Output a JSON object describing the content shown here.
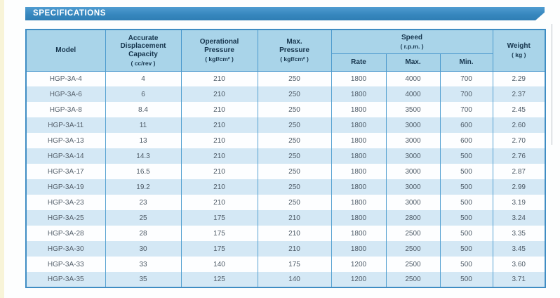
{
  "banner": {
    "title": "SPECIFICATIONS"
  },
  "table": {
    "header": {
      "model": "Model",
      "displacement": "Accurate\nDisplacement\nCapacity",
      "displacement_unit": "( cc/rev )",
      "operational_pressure": "Operational\nPressure",
      "operational_pressure_unit": "( kgf/cm² )",
      "max_pressure": "Max.\nPressure",
      "max_pressure_unit": "( kgf/cm² )",
      "speed": "Speed",
      "speed_unit": "( r.p.m. )",
      "rate": "Rate",
      "max": "Max.",
      "min": "Min.",
      "weight": "Weight",
      "weight_unit": "( kg )"
    },
    "rows": [
      [
        "HGP-3A-4",
        "4",
        "210",
        "250",
        "1800",
        "4000",
        "700",
        "2.29"
      ],
      [
        "HGP-3A-6",
        "6",
        "210",
        "250",
        "1800",
        "4000",
        "700",
        "2.37"
      ],
      [
        "HGP-3A-8",
        "8.4",
        "210",
        "250",
        "1800",
        "3500",
        "700",
        "2.45"
      ],
      [
        "HGP-3A-11",
        "11",
        "210",
        "250",
        "1800",
        "3000",
        "600",
        "2.60"
      ],
      [
        "HGP-3A-13",
        "13",
        "210",
        "250",
        "1800",
        "3000",
        "600",
        "2.70"
      ],
      [
        "HGP-3A-14",
        "14.3",
        "210",
        "250",
        "1800",
        "3000",
        "500",
        "2.76"
      ],
      [
        "HGP-3A-17",
        "16.5",
        "210",
        "250",
        "1800",
        "3000",
        "500",
        "2.87"
      ],
      [
        "HGP-3A-19",
        "19.2",
        "210",
        "250",
        "1800",
        "3000",
        "500",
        "2.99"
      ],
      [
        "HGP-3A-23",
        "23",
        "210",
        "250",
        "1800",
        "3000",
        "500",
        "3.19"
      ],
      [
        "HGP-3A-25",
        "25",
        "175",
        "210",
        "1800",
        "2800",
        "500",
        "3.24"
      ],
      [
        "HGP-3A-28",
        "28",
        "175",
        "210",
        "1800",
        "2500",
        "500",
        "3.35"
      ],
      [
        "HGP-3A-30",
        "30",
        "175",
        "210",
        "1800",
        "2500",
        "500",
        "3.45"
      ],
      [
        "HGP-3A-33",
        "33",
        "140",
        "175",
        "1200",
        "2500",
        "500",
        "3.60"
      ],
      [
        "HGP-3A-35",
        "35",
        "125",
        "140",
        "1200",
        "2500",
        "500",
        "3.71"
      ]
    ]
  },
  "colors": {
    "banner_blue": "#3a8cc4",
    "header_fill": "#a9d4e9",
    "row_alt_fill": "#d4e8f5",
    "border_blue": "#4b99cd",
    "header_text": "#17364e",
    "body_text": "#4d5a66",
    "page_edge_stripe": "#f8f4d8"
  }
}
